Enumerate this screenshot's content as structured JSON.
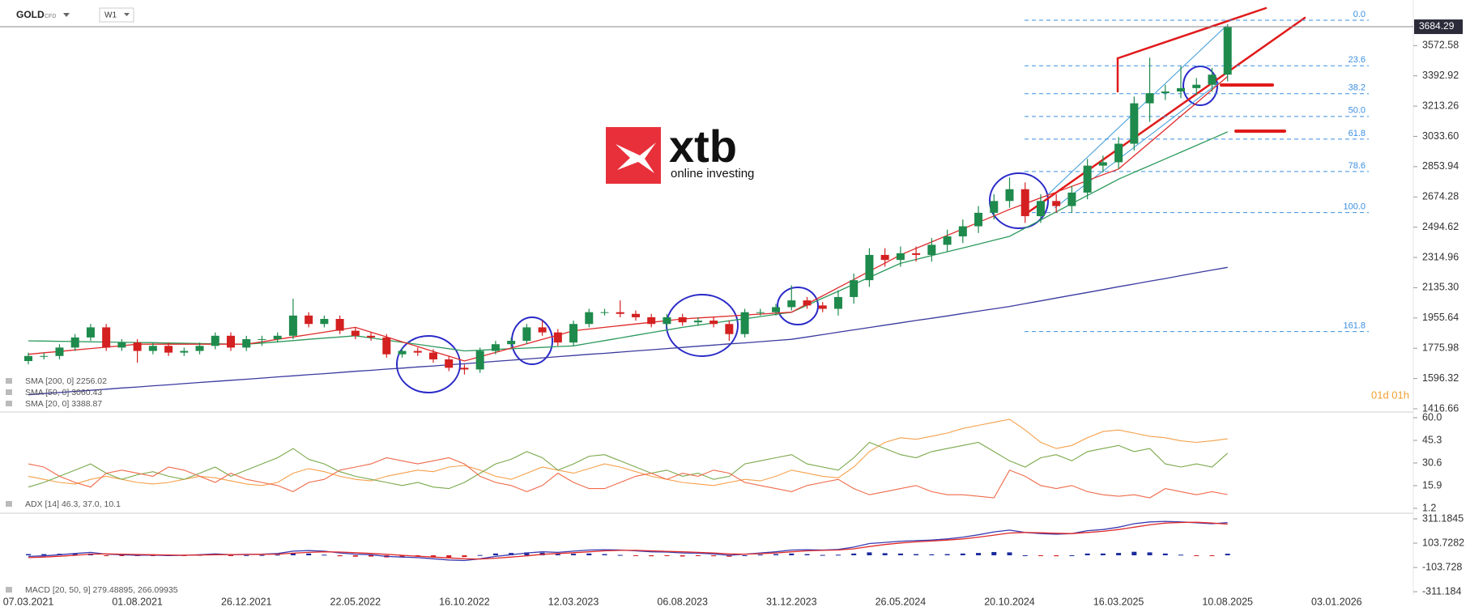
{
  "header": {
    "symbol": "GOLD",
    "instrument_type": "CFD",
    "timeframe": "W1"
  },
  "logo": {
    "name": "xtb",
    "tagline": "online investing"
  },
  "timer": "01d 01h",
  "chart_data": [
    {
      "type": "candlestick",
      "up_color": "#1e8a4c",
      "down_color": "#d42020",
      "open": [
        1700,
        1730,
        1730,
        1780,
        1840,
        1900,
        1780,
        1810,
        1760,
        1790,
        1750,
        1760,
        1790,
        1850,
        1780,
        1830,
        1830,
        1850,
        1970,
        1920,
        1950,
        1880,
        1850,
        1840,
        1740,
        1760,
        1750,
        1710,
        1660,
        1650,
        1760,
        1800,
        1820,
        1900,
        1870,
        1810,
        1920,
        1990,
        1990,
        1980,
        1960,
        1920,
        1960,
        1930,
        1940,
        1920,
        1860,
        1990,
        1990,
        2020,
        2060,
        2030,
        2010,
        2080,
        2180,
        2330,
        2300,
        2340,
        2330,
        2390,
        2440,
        2500,
        2580,
        2650,
        2720,
        2560,
        2650,
        2620,
        2700,
        2860,
        2880,
        2990,
        3230,
        3290,
        3300,
        3320,
        3340,
        3400
      ],
      "high": [
        1750,
        1750,
        1800,
        1860,
        1920,
        1920,
        1830,
        1830,
        1810,
        1810,
        1780,
        1810,
        1870,
        1870,
        1850,
        1850,
        1870,
        2070,
        1990,
        1970,
        1970,
        1900,
        1870,
        1860,
        1780,
        1780,
        1770,
        1730,
        1680,
        1780,
        1820,
        1840,
        1920,
        1940,
        1890,
        1940,
        2010,
        2010,
        2060,
        2000,
        1980,
        1980,
        1980,
        1960,
        1960,
        1940,
        2010,
        2010,
        2040,
        2150,
        2080,
        2050,
        2120,
        2220,
        2370,
        2370,
        2380,
        2380,
        2430,
        2480,
        2540,
        2620,
        2690,
        2790,
        2760,
        2690,
        2690,
        2740,
        2900,
        2920,
        3030,
        3270,
        3500,
        3340,
        3450,
        3380,
        3440,
        3700
      ],
      "low": [
        1680,
        1710,
        1710,
        1760,
        1820,
        1760,
        1760,
        1690,
        1740,
        1730,
        1730,
        1740,
        1770,
        1760,
        1760,
        1790,
        1810,
        1830,
        1900,
        1900,
        1860,
        1830,
        1820,
        1720,
        1720,
        1730,
        1690,
        1640,
        1620,
        1630,
        1740,
        1780,
        1800,
        1850,
        1790,
        1790,
        1900,
        1970,
        1960,
        1940,
        1900,
        1900,
        1910,
        1910,
        1900,
        1820,
        1840,
        1970,
        1970,
        2000,
        2010,
        1990,
        1970,
        2040,
        2140,
        2260,
        2260,
        2290,
        2290,
        2350,
        2400,
        2460,
        2540,
        2610,
        2520,
        2520,
        2580,
        2580,
        2660,
        2820,
        2840,
        2950,
        3120,
        3250,
        3260,
        3280,
        3300,
        3360
      ],
      "close": [
        1730,
        1730,
        1780,
        1840,
        1900,
        1780,
        1810,
        1760,
        1790,
        1750,
        1760,
        1790,
        1850,
        1780,
        1830,
        1830,
        1850,
        1970,
        1920,
        1950,
        1880,
        1850,
        1840,
        1740,
        1760,
        1750,
        1710,
        1660,
        1650,
        1760,
        1800,
        1820,
        1900,
        1870,
        1810,
        1920,
        1990,
        1990,
        1980,
        1960,
        1920,
        1960,
        1930,
        1940,
        1920,
        1860,
        1990,
        1990,
        2020,
        2060,
        2030,
        2010,
        2080,
        2180,
        2330,
        2300,
        2340,
        2330,
        2390,
        2440,
        2500,
        2580,
        2650,
        2720,
        2560,
        2650,
        2620,
        2700,
        2860,
        2880,
        2990,
        3230,
        3290,
        3300,
        3320,
        3340,
        3400,
        3684.29
      ],
      "series": [
        {
          "legend": "SMA [200, 0] 2256.02",
          "color": "#3a3aa0",
          "values": [
            1500,
            1507,
            1513,
            1520,
            1526,
            1533,
            1540,
            1546,
            1553,
            1559,
            1566,
            1573,
            1579,
            1586,
            1592,
            1599,
            1606,
            1612,
            1619,
            1625,
            1632,
            1639,
            1645,
            1652,
            1658,
            1665,
            1671,
            1678,
            1684,
            1691,
            1698,
            1705,
            1712,
            1719,
            1726,
            1733,
            1740,
            1746,
            1753,
            1760,
            1767,
            1774,
            1781,
            1788,
            1795,
            1802,
            1808,
            1815,
            1822,
            1829,
            1843,
            1857,
            1871,
            1885,
            1899,
            1913,
            1927,
            1941,
            1954,
            1968,
            1982,
            1996,
            2010,
            2024,
            2041,
            2057,
            2074,
            2091,
            2107,
            2124,
            2141,
            2157,
            2174,
            2190,
            2207,
            2224,
            2240,
            2256.02
          ]
        },
        {
          "legend": "SMA [50, 0] 3060.43",
          "color": "#2e9a5e",
          "values": [
            1820,
            1819,
            1817,
            1816,
            1814,
            1813,
            1811,
            1810,
            1809,
            1807,
            1806,
            1804,
            1803,
            1801,
            1800,
            1807,
            1814,
            1821,
            1829,
            1836,
            1843,
            1850,
            1837,
            1824,
            1811,
            1799,
            1786,
            1773,
            1760,
            1764,
            1769,
            1773,
            1777,
            1781,
            1786,
            1790,
            1806,
            1821,
            1837,
            1853,
            1869,
            1884,
            1900,
            1913,
            1926,
            1939,
            1951,
            1964,
            1977,
            1990,
            2031,
            2073,
            2114,
            2156,
            2197,
            2239,
            2280,
            2303,
            2326,
            2349,
            2371,
            2394,
            2417,
            2440,
            2489,
            2537,
            2586,
            2634,
            2683,
            2731,
            2780,
            2820,
            2860,
            2900,
            2940,
            2980,
            3020,
            3060.43
          ]
        },
        {
          "legend": "SMA [20, 0] 3388.87",
          "color": "#e02a2a",
          "values": [
            1740,
            1749,
            1757,
            1766,
            1774,
            1783,
            1791,
            1800,
            1800,
            1800,
            1800,
            1800,
            1800,
            1800,
            1800,
            1814,
            1829,
            1843,
            1857,
            1871,
            1886,
            1900,
            1871,
            1843,
            1814,
            1786,
            1757,
            1729,
            1700,
            1726,
            1751,
            1777,
            1803,
            1829,
            1854,
            1880,
            1890,
            1900,
            1910,
            1920,
            1930,
            1940,
            1950,
            1956,
            1961,
            1967,
            1973,
            1979,
            1984,
            1990,
            2039,
            2087,
            2136,
            2184,
            2233,
            2281,
            2330,
            2369,
            2407,
            2446,
            2484,
            2523,
            2561,
            2600,
            2634,
            2669,
            2703,
            2737,
            2771,
            2806,
            2840,
            2918,
            2997,
            3075,
            3154,
            3232,
            3311,
            3388.87
          ]
        }
      ],
      "fib_levels": [
        {
          "value": 3723,
          "label": "0.0"
        },
        {
          "value": 3453,
          "label": "23.6"
        },
        {
          "value": 3287,
          "label": "38.2"
        },
        {
          "value": 3152,
          "label": "50.0"
        },
        {
          "value": 3017,
          "label": "61.8"
        },
        {
          "value": 2825,
          "label": "78.6"
        },
        {
          "value": 2581,
          "label": "100.0"
        },
        {
          "value": 1875,
          "label": "161.8"
        }
      ],
      "ylim": [
        1416.66,
        3723
      ],
      "yticks": [
        1416.66,
        1596.32,
        1775.98,
        1955.64,
        {
          "value": 2135.3,
          "label": "2135.30"
        },
        2314.96,
        2494.62,
        2674.28,
        2853.94,
        {
          "value": 3033.6,
          "label": "3033.60"
        },
        3213.26,
        3392.92,
        3572.58
      ],
      "xticks": [
        "07.03.2021",
        "01.08.2021",
        "26.12.2021",
        "22.05.2022",
        "16.10.2022",
        "12.03.2023",
        "06.08.2023",
        "31.12.2023",
        "26.05.2024",
        "20.10.2024",
        "16.03.2025",
        "10.08.2025",
        "03.01.2026"
      ]
    },
    {
      "type": "line",
      "legend": "ADX [14] 46.3, 37.0, 10.1",
      "series": [
        {
          "color": "#f5a04a",
          "values": [
            22,
            20,
            18,
            17,
            20,
            22,
            20,
            18,
            17,
            18,
            20,
            22,
            21,
            19,
            17,
            16,
            18,
            24,
            27,
            25,
            22,
            20,
            19,
            22,
            24,
            26,
            25,
            28,
            29,
            26,
            22,
            20,
            24,
            28,
            26,
            24,
            27,
            30,
            28,
            25,
            22,
            20,
            18,
            17,
            16,
            18,
            20,
            19,
            22,
            26,
            24,
            22,
            21,
            28,
            38,
            44,
            47,
            46,
            48,
            50,
            53,
            55,
            57,
            59,
            52,
            44,
            40,
            42,
            47,
            51,
            52,
            50,
            48,
            47,
            45,
            44,
            45,
            46.3
          ]
        },
        {
          "color": "#7aa84a",
          "values": [
            15,
            18,
            22,
            26,
            30,
            24,
            20,
            23,
            25,
            22,
            20,
            24,
            28,
            22,
            26,
            30,
            34,
            40,
            33,
            30,
            25,
            22,
            20,
            18,
            16,
            18,
            15,
            14,
            18,
            24,
            30,
            33,
            38,
            34,
            26,
            30,
            35,
            36,
            32,
            28,
            24,
            26,
            22,
            24,
            20,
            22,
            30,
            32,
            34,
            36,
            30,
            28,
            26,
            34,
            44,
            40,
            36,
            34,
            38,
            40,
            42,
            44,
            38,
            32,
            28,
            34,
            36,
            32,
            38,
            40,
            42,
            38,
            40,
            30,
            28,
            30,
            28,
            37
          ]
        },
        {
          "color": "#f06a4a",
          "values": [
            30,
            28,
            22,
            18,
            15,
            24,
            26,
            24,
            22,
            28,
            26,
            22,
            18,
            24,
            20,
            18,
            16,
            12,
            18,
            20,
            26,
            28,
            30,
            34,
            32,
            30,
            32,
            34,
            30,
            22,
            18,
            16,
            12,
            16,
            24,
            18,
            14,
            14,
            18,
            22,
            24,
            20,
            24,
            22,
            26,
            24,
            18,
            16,
            14,
            12,
            16,
            18,
            20,
            14,
            10,
            12,
            14,
            16,
            12,
            10,
            10,
            9,
            8,
            26,
            22,
            16,
            14,
            16,
            12,
            10,
            9,
            10,
            8,
            14,
            12,
            10,
            12,
            10.1
          ]
        }
      ],
      "ylim": [
        1.2,
        60
      ],
      "yticks": [
        {
          "value": 60,
          "label": "60.0"
        },
        45.3,
        30.6,
        15.9,
        1.2
      ]
    },
    {
      "type": "macd",
      "legend": "MACD [20, 50, 9] 279.48895, 266.09935",
      "series": [
        {
          "color": "#3a3ab0",
          "values": [
            -10,
            -5,
            5,
            15,
            25,
            10,
            5,
            0,
            2,
            -2,
            0,
            5,
            12,
            5,
            8,
            10,
            15,
            35,
            40,
            35,
            20,
            10,
            5,
            -10,
            -15,
            -20,
            -30,
            -40,
            -45,
            -30,
            -10,
            5,
            20,
            30,
            25,
            35,
            45,
            48,
            45,
            38,
            30,
            28,
            20,
            18,
            12,
            0,
            10,
            20,
            30,
            45,
            48,
            45,
            50,
            70,
            100,
            110,
            120,
            125,
            130,
            140,
            155,
            175,
            200,
            215,
            195,
            185,
            180,
            185,
            210,
            220,
            240,
            270,
            285,
            290,
            285,
            278,
            270,
            279.48895
          ]
        },
        {
          "color": "#e02a2a",
          "values": [
            -20,
            -15,
            -8,
            0,
            10,
            12,
            10,
            7,
            5,
            3,
            1,
            2,
            5,
            6,
            7,
            8,
            10,
            18,
            25,
            30,
            28,
            22,
            16,
            8,
            0,
            -8,
            -15,
            -22,
            -30,
            -32,
            -25,
            -15,
            -5,
            8,
            15,
            22,
            30,
            38,
            42,
            42,
            38,
            34,
            30,
            25,
            20,
            12,
            10,
            14,
            20,
            30,
            38,
            42,
            45,
            55,
            75,
            92,
            105,
            115,
            122,
            130,
            140,
            155,
            172,
            190,
            195,
            192,
            188,
            185,
            195,
            205,
            220,
            240,
            260,
            275,
            280,
            282,
            276,
            266.09935
          ]
        }
      ],
      "histogram": {
        "up_color": "#1a2a9c",
        "down_color": "#d42020",
        "values": [
          10,
          10,
          13,
          15,
          15,
          -2,
          -5,
          -7,
          -3,
          -5,
          -1,
          3,
          7,
          -1,
          1,
          2,
          5,
          17,
          15,
          5,
          -8,
          -12,
          -11,
          -18,
          -15,
          -12,
          -15,
          -18,
          -15,
          2,
          15,
          20,
          25,
          22,
          10,
          13,
          15,
          10,
          3,
          -4,
          -8,
          -6,
          -10,
          -7,
          -8,
          -12,
          0,
          6,
          10,
          15,
          10,
          3,
          5,
          15,
          25,
          18,
          15,
          10,
          8,
          10,
          15,
          20,
          28,
          25,
          0,
          -7,
          -8,
          0,
          15,
          15,
          20,
          30,
          25,
          15,
          5,
          -4,
          -6,
          13.39
        ]
      },
      "ylim": [
        -311.184,
        311.1845
      ],
      "yticks": [
        311.1845,
        103.7282,
        -103.728,
        -311.184
      ]
    }
  ]
}
